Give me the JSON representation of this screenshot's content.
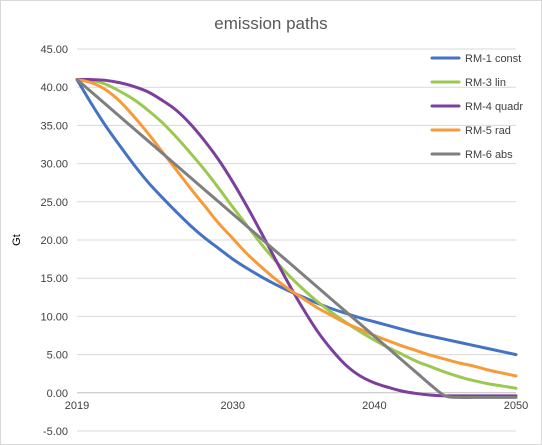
{
  "chart_data": {
    "type": "line",
    "title": "emission paths",
    "xlabel": "",
    "ylabel": "Gt",
    "xlim": [
      2019,
      2050
    ],
    "ylim": [
      -5,
      45
    ],
    "x_ticks": [
      "2019",
      "2030",
      "2040",
      "2050"
    ],
    "y_ticks": [
      "45.00",
      "40.00",
      "35.00",
      "30.00",
      "25.00",
      "20.00",
      "15.00",
      "10.00",
      "5.00",
      "0.00",
      "-5.00"
    ],
    "grid": "horizontal",
    "legend_position": "top-right",
    "x": [
      2019,
      2020,
      2021,
      2022,
      2023,
      2024,
      2025,
      2026,
      2027,
      2028,
      2029,
      2030,
      2031,
      2032,
      2033,
      2034,
      2035,
      2036,
      2037,
      2038,
      2039,
      2040,
      2041,
      2042,
      2043,
      2044,
      2045,
      2046,
      2047,
      2048,
      2049,
      2050
    ],
    "series": [
      {
        "name": "RM-1 const",
        "color": "#4472c4",
        "values": [
          41.0,
          37.9,
          35.0,
          32.4,
          29.9,
          27.6,
          25.6,
          23.7,
          21.9,
          20.3,
          18.9,
          17.5,
          16.3,
          15.2,
          14.2,
          13.3,
          12.5,
          11.7,
          11.0,
          10.4,
          9.8,
          9.3,
          8.8,
          8.3,
          7.8,
          7.4,
          7.0,
          6.6,
          6.2,
          5.8,
          5.4,
          5.0
        ]
      },
      {
        "name": "RM-3 lin",
        "color": "#9bc94f",
        "values": [
          41.0,
          40.9,
          40.4,
          39.5,
          38.4,
          37.0,
          35.4,
          33.5,
          31.4,
          29.2,
          26.8,
          24.3,
          21.9,
          19.5,
          17.3,
          15.3,
          13.5,
          11.9,
          10.5,
          9.2,
          8.0,
          6.9,
          5.9,
          5.0,
          4.1,
          3.4,
          2.7,
          2.1,
          1.6,
          1.2,
          0.9,
          0.6
        ]
      },
      {
        "name": "RM-4 quadr",
        "color": "#7c3f9c",
        "values": [
          41.0,
          41.0,
          40.9,
          40.6,
          40.1,
          39.4,
          38.3,
          37.0,
          35.2,
          33.0,
          30.5,
          27.6,
          24.4,
          21.0,
          17.5,
          14.1,
          10.9,
          8.0,
          5.6,
          3.6,
          2.2,
          1.3,
          0.7,
          0.2,
          -0.1,
          -0.3,
          -0.4,
          -0.4,
          -0.4,
          -0.4,
          -0.4,
          -0.4
        ]
      },
      {
        "name": "RM-5 rad",
        "color": "#f79a3a",
        "values": [
          41.0,
          40.6,
          39.7,
          38.2,
          36.2,
          34.0,
          31.6,
          29.2,
          26.8,
          24.5,
          22.2,
          20.2,
          18.2,
          16.5,
          14.9,
          13.5,
          12.3,
          11.1,
          10.1,
          9.1,
          8.3,
          7.5,
          6.8,
          6.1,
          5.5,
          4.9,
          4.4,
          3.9,
          3.5,
          3.0,
          2.6,
          2.2
        ]
      },
      {
        "name": "RM-6 abs",
        "color": "#7f7f7f",
        "values": [
          41.0,
          39.4,
          37.8,
          36.2,
          34.6,
          33.0,
          31.4,
          29.8,
          28.2,
          26.6,
          25.0,
          23.4,
          21.8,
          20.2,
          18.6,
          17.0,
          15.4,
          13.8,
          12.2,
          10.6,
          9.0,
          7.4,
          5.8,
          4.2,
          2.6,
          1.0,
          -0.4,
          -0.6,
          -0.6,
          -0.6,
          -0.6,
          -0.6
        ]
      }
    ]
  }
}
